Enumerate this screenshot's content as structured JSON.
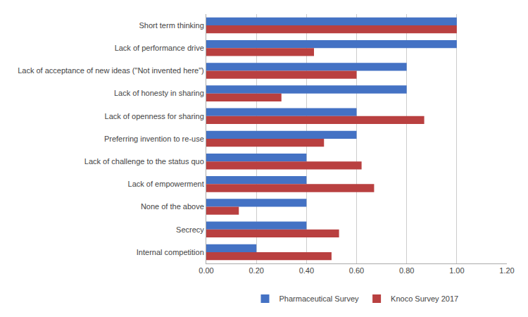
{
  "chart_data": {
    "type": "bar",
    "orientation": "horizontal",
    "categories": [
      "Short term thinking",
      "Lack of performance drive",
      "Lack of acceptance of new ideas (\"Not invented here\")",
      "Lack of honesty in sharing",
      "Lack of openness for sharing",
      "Preferring invention to re-use",
      "Lack of challenge to the status quo",
      "Lack of empowerment",
      "None of the above",
      "Secrecy",
      "Internal competition"
    ],
    "series": [
      {
        "name": "Pharmaceutical Survey",
        "color": "#4472C4",
        "values": [
          1.0,
          1.0,
          0.8,
          0.8,
          0.6,
          0.6,
          0.4,
          0.4,
          0.4,
          0.4,
          0.2
        ]
      },
      {
        "name": "Knoco Survey 2017",
        "color": "#B94040",
        "values": [
          1.0,
          0.43,
          0.6,
          0.3,
          0.87,
          0.47,
          0.62,
          0.67,
          0.13,
          0.53,
          0.5
        ]
      }
    ],
    "xlim": [
      0,
      1.2
    ],
    "xticks": [
      {
        "value": 0,
        "label": "0.00"
      },
      {
        "value": 0.2,
        "label": "0.20"
      },
      {
        "value": 0.4,
        "label": "0.40"
      },
      {
        "value": 0.6,
        "label": "0.60"
      },
      {
        "value": 0.8,
        "label": "0.80"
      },
      {
        "value": 1,
        "label": "1.00"
      },
      {
        "value": 1.2,
        "label": "1.20"
      }
    ],
    "grid": true,
    "legend": "bottom"
  }
}
